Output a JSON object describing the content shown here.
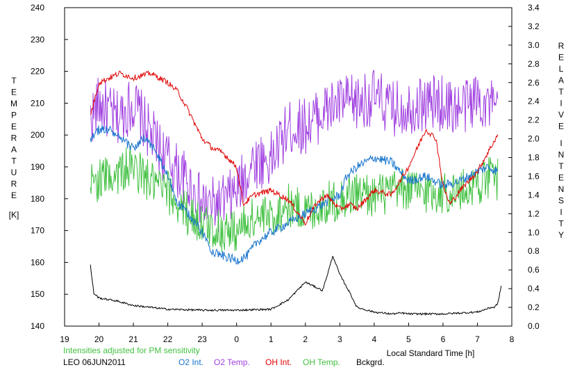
{
  "chart_data": {
    "type": "line",
    "left_axis": {
      "label_letters": [
        "T",
        "E",
        "M",
        "P",
        "E",
        "R",
        "A",
        "T",
        "U",
        "R",
        "E"
      ],
      "unit": "[K]",
      "ylim": [
        140,
        240
      ],
      "ticks": [
        "140",
        "150",
        "160",
        "170",
        "180",
        "190",
        "200",
        "210",
        "220",
        "230",
        "240"
      ]
    },
    "right_axis": {
      "label_word1": [
        "R",
        "E",
        "L",
        "A",
        "T",
        "I",
        "V",
        "E"
      ],
      "label_word2": [
        "I",
        "N",
        "T",
        "E",
        "N",
        "S",
        "I",
        "T",
        "Y"
      ],
      "ylim": [
        0.0,
        3.4
      ],
      "ticks": [
        "0.0",
        "0.2",
        "0.4",
        "0.6",
        "0.8",
        "1.0",
        "1.2",
        "1.4",
        "1.6",
        "1.8",
        "2.0",
        "2.2",
        "2.4",
        "2.6",
        "2.8",
        "3.0",
        "3.2",
        "3.4"
      ]
    },
    "x_axis": {
      "xlabel": "Local Standard Time [h]",
      "xlim": [
        19,
        32
      ],
      "tick_labels": [
        "19",
        "20",
        "21",
        "22",
        "23",
        "0",
        "1",
        "2",
        "3",
        "4",
        "5",
        "6",
        "7",
        "8"
      ]
    },
    "note": "Intensities adjusted for PM sensitivity",
    "legend": {
      "station": "LEO 06JUN2011",
      "items": [
        {
          "label": "O2 Int.",
          "color": "#1874cd"
        },
        {
          "label": "O2 Temp.",
          "color": "#a040e0"
        },
        {
          "label": "OH Int.",
          "color": "#e00000"
        },
        {
          "label": "OH Temp.",
          "color": "#40c040"
        },
        {
          "label": "Bckgrd.",
          "color": "#000000"
        }
      ]
    },
    "series": [
      {
        "label_key": "O2 Temp.",
        "axis": "left",
        "color": "#a040e0",
        "noise": 9,
        "x": [
          19.75,
          20.0,
          20.5,
          21.0,
          21.5,
          22.0,
          22.5,
          23.0,
          23.5,
          24.0,
          24.5,
          25.0,
          25.5,
          26.0,
          26.5,
          27.0,
          27.5,
          28.0,
          28.5,
          29.0,
          29.5,
          30.0,
          30.5,
          31.0,
          31.5,
          31.6
        ],
        "y": [
          205,
          210,
          205,
          210,
          200,
          192,
          186,
          178,
          178,
          182,
          192,
          192,
          202,
          203,
          207,
          210,
          210,
          212,
          208,
          209,
          210,
          210,
          208,
          212,
          208,
          206
        ]
      },
      {
        "label_key": "OH Temp.",
        "axis": "left",
        "color": "#40c040",
        "noise": 7,
        "x": [
          19.75,
          20.0,
          20.5,
          21.0,
          21.5,
          22.0,
          22.5,
          23.0,
          23.5,
          24.0,
          24.5,
          25.0,
          25.5,
          26.0,
          26.5,
          27.0,
          27.5,
          28.0,
          28.5,
          29.0,
          29.5,
          30.0,
          30.5,
          31.0,
          31.5,
          31.6
        ],
        "y": [
          185,
          186,
          188,
          190,
          185,
          182,
          176,
          172,
          170,
          170,
          174,
          174,
          178,
          176,
          178,
          180,
          182,
          181,
          182,
          183,
          182,
          182,
          182,
          185,
          187,
          186
        ]
      },
      {
        "label_key": "O2 Int.",
        "axis": "right",
        "color": "#1874cd",
        "noise": 0.05,
        "x": [
          19.75,
          20.0,
          20.3,
          20.6,
          21.0,
          21.3,
          21.6,
          22.0,
          22.3,
          22.6,
          23.0,
          23.3,
          23.6,
          24.0,
          24.3,
          24.6,
          25.0,
          25.5,
          26.0,
          26.5,
          27.0,
          27.2,
          27.5,
          28.0,
          28.5,
          29.0,
          29.5,
          30.0,
          30.5,
          31.0,
          31.3,
          31.6
        ],
        "y": [
          2.0,
          2.1,
          2.1,
          2.0,
          1.9,
          2.0,
          1.9,
          1.6,
          1.3,
          1.2,
          1.0,
          0.8,
          0.75,
          0.7,
          0.75,
          0.9,
          1.0,
          1.1,
          1.2,
          1.3,
          1.4,
          1.6,
          1.7,
          1.8,
          1.75,
          1.55,
          1.6,
          1.5,
          1.55,
          1.65,
          1.7,
          1.65
        ]
      },
      {
        "label_key": "OH Int.",
        "axis": "right",
        "color": "#e00000",
        "noise": 0.03,
        "x": [
          19.75,
          20.0,
          20.3,
          20.6,
          21.0,
          21.5,
          22.0,
          22.3,
          22.6,
          23.0,
          23.3,
          23.6,
          24.0,
          24.2,
          24.5,
          25.0,
          25.5,
          26.0,
          26.3,
          26.6,
          27.0,
          27.3,
          27.5,
          28.0,
          28.5,
          29.0,
          29.5,
          29.8,
          30.0,
          30.2,
          30.5,
          31.0,
          31.3,
          31.6
        ],
        "y": [
          2.25,
          2.6,
          2.65,
          2.7,
          2.65,
          2.7,
          2.6,
          2.5,
          2.3,
          2.0,
          1.9,
          1.85,
          1.7,
          1.3,
          1.4,
          1.45,
          1.35,
          1.1,
          1.3,
          1.4,
          1.25,
          1.3,
          1.25,
          1.45,
          1.4,
          1.7,
          2.1,
          2.0,
          1.5,
          1.3,
          1.45,
          1.65,
          1.85,
          2.05
        ]
      },
      {
        "label_key": "Bckgrd.",
        "axis": "right",
        "color": "#000000",
        "noise": 0.01,
        "x": [
          19.75,
          19.85,
          20.0,
          20.5,
          21.0,
          22.0,
          23.0,
          24.0,
          25.0,
          25.5,
          26.0,
          26.5,
          26.8,
          27.0,
          27.3,
          27.5,
          27.8,
          28.0,
          28.5,
          28.8,
          29.0,
          29.5,
          30.0,
          31.0,
          31.4,
          31.5,
          31.6,
          31.7
        ],
        "y": [
          0.65,
          0.35,
          0.3,
          0.27,
          0.22,
          0.18,
          0.17,
          0.17,
          0.18,
          0.28,
          0.47,
          0.38,
          0.75,
          0.55,
          0.35,
          0.2,
          0.17,
          0.15,
          0.13,
          0.14,
          0.13,
          0.13,
          0.13,
          0.15,
          0.2,
          0.2,
          0.25,
          0.45
        ]
      }
    ]
  }
}
